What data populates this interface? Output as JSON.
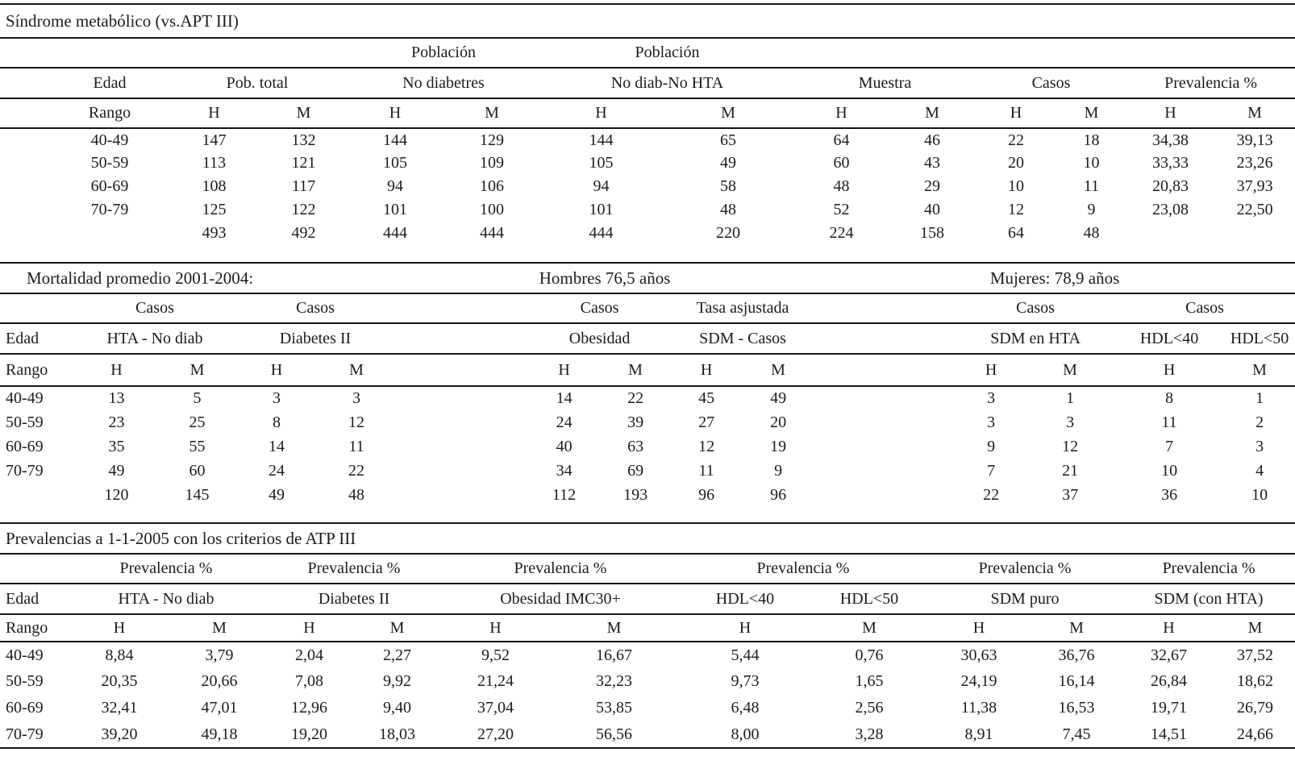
{
  "page": {
    "background": "#ffffff",
    "text_color": "#1c1c1c",
    "rule_color": "#161616"
  },
  "section1": {
    "title": "Síndrome metabólico (vs.APT III)",
    "super": [
      "Población",
      "Población"
    ],
    "groups": [
      "Edad",
      "Pob. total",
      "No diabetres",
      "No diab-No HTA",
      "Muestra",
      "Casos",
      "Prevalencia %"
    ],
    "sub": [
      "Rango",
      "H",
      "M",
      "H",
      "M",
      "H",
      "M",
      "H",
      "M",
      "H",
      "M",
      "H",
      "M"
    ],
    "rows": [
      [
        "40-49",
        "147",
        "132",
        "144",
        "129",
        "144",
        "65",
        "64",
        "46",
        "22",
        "18",
        "34,38",
        "39,13"
      ],
      [
        "50-59",
        "113",
        "121",
        "105",
        "109",
        "105",
        "49",
        "60",
        "43",
        "20",
        "10",
        "33,33",
        "23,26"
      ],
      [
        "60-69",
        "108",
        "117",
        "94",
        "106",
        "94",
        "58",
        "48",
        "29",
        "10",
        "11",
        "20,83",
        "37,93"
      ],
      [
        "70-79",
        "125",
        "122",
        "101",
        "100",
        "101",
        "48",
        "52",
        "40",
        "12",
        "9",
        "23,08",
        "22,50"
      ],
      [
        "",
        "493",
        "492",
        "444",
        "444",
        "444",
        "220",
        "224",
        "158",
        "64",
        "48",
        "",
        ""
      ]
    ]
  },
  "section2": {
    "title_left": "Mortalidad promedio 2001-2004:",
    "title_mid": "Hombres 76,5 años",
    "title_right": "Mujeres: 78,9 años",
    "super": [
      "Casos",
      "Casos",
      "Casos",
      "Tasa asjustada",
      "Casos",
      "Casos"
    ],
    "groups": [
      "Edad",
      "HTA - No diab",
      "Diabetes II",
      "Obesidad",
      "SDM - Casos",
      "SDM en HTA",
      "HDL<40",
      "HDL<50"
    ],
    "sub": [
      "Rango",
      "H",
      "M",
      "H",
      "M",
      "H",
      "M",
      "H",
      "M",
      "H",
      "M",
      "H",
      "M"
    ],
    "rows": [
      [
        "40-49",
        "13",
        "5",
        "3",
        "3",
        "14",
        "22",
        "45",
        "49",
        "3",
        "1",
        "8",
        "1"
      ],
      [
        "50-59",
        "23",
        "25",
        "8",
        "12",
        "24",
        "39",
        "27",
        "20",
        "3",
        "3",
        "11",
        "2"
      ],
      [
        "60-69",
        "35",
        "55",
        "14",
        "11",
        "40",
        "63",
        "12",
        "19",
        "9",
        "12",
        "7",
        "3"
      ],
      [
        "70-79",
        "49",
        "60",
        "24",
        "22",
        "34",
        "69",
        "11",
        "9",
        "7",
        "21",
        "10",
        "4"
      ],
      [
        "",
        "120",
        "145",
        "49",
        "48",
        "112",
        "193",
        "96",
        "96",
        "22",
        "37",
        "36",
        "10"
      ]
    ]
  },
  "section3": {
    "title": "Prevalencias a 1-1-2005 con los criterios de ATP III",
    "super": [
      "Prevalencia %",
      "Prevalencia %",
      "Prevalencia %",
      "Prevalencia %",
      "Prevalencia %",
      "Prevalencia %"
    ],
    "groups": [
      "Edad",
      "HTA - No diab",
      "Diabetes II",
      "Obesidad IMC30+",
      "HDL<40",
      "HDL<50",
      "SDM puro",
      "SDM (con HTA)"
    ],
    "sub": [
      "Rango",
      "H",
      "M",
      "H",
      "M",
      "H",
      "M",
      "H",
      "M",
      "H",
      "M",
      "H",
      "M"
    ],
    "rows": [
      [
        "40-49",
        "8,84",
        "3,79",
        "2,04",
        "2,27",
        "9,52",
        "16,67",
        "5,44",
        "0,76",
        "30,63",
        "36,76",
        "32,67",
        "37,52"
      ],
      [
        "50-59",
        "20,35",
        "20,66",
        "7,08",
        "9,92",
        "21,24",
        "32,23",
        "9,73",
        "1,65",
        "24,19",
        "16,14",
        "26,84",
        "18,62"
      ],
      [
        "60-69",
        "32,41",
        "47,01",
        "12,96",
        "9,40",
        "37,04",
        "53,85",
        "6,48",
        "2,56",
        "11,38",
        "16,53",
        "19,71",
        "26,79"
      ],
      [
        "70-79",
        "39,20",
        "49,18",
        "19,20",
        "18,03",
        "27,20",
        "56,56",
        "8,00",
        "3,28",
        "8,91",
        "7,45",
        "14,51",
        "24,66"
      ]
    ]
  }
}
